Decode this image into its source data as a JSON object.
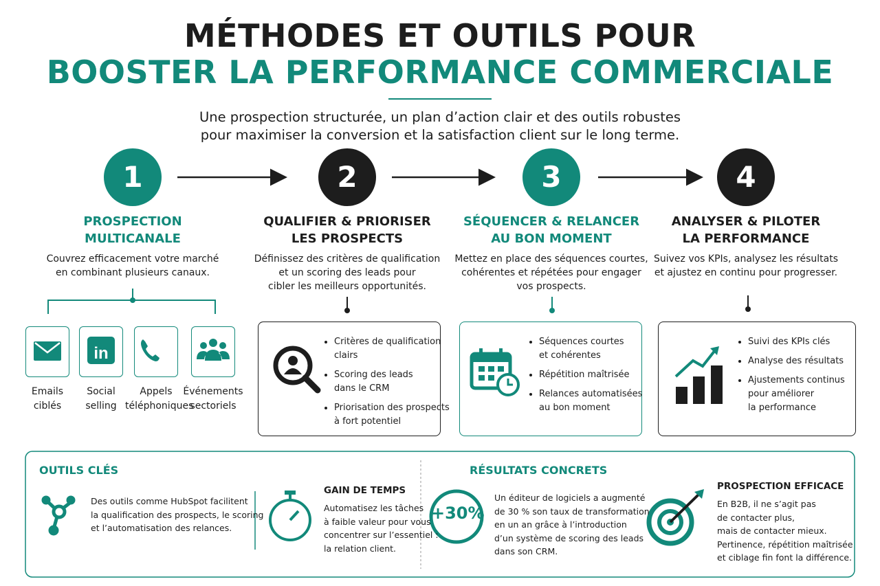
{
  "header": {
    "title_line1": "MÉTHODES ET OUTILS POUR",
    "title_line2": "BOOSTER LA PERFORMANCE COMMERCIALE",
    "subtitle": [
      "Une prospection structurée, un plan d’action clair et des outils robustes",
      "pour maximiser la conversion et la satisfaction client sur le long terme."
    ]
  },
  "steps": [
    {
      "number": 1,
      "title": [
        "PROSPECTION",
        "MULTICANALE"
      ],
      "description": [
        "Couvrez efficacement votre marché",
        "en combinant plusieurs canaux."
      ],
      "channels": [
        [
          "Emails",
          "ciblés"
        ],
        [
          "Social",
          "selling"
        ],
        [
          "Appels",
          "téléphoniques"
        ],
        [
          "Événements",
          "sectoriels"
        ]
      ]
    },
    {
      "number": 2,
      "title": [
        "QUALIFIER & PRIORISER",
        "LES PROSPECTS"
      ],
      "description": [
        "Définissez des critères de qualification",
        "et un scoring des leads pour",
        "cibler les meilleurs opportunités."
      ],
      "bullets": [
        [
          "Critères de qualification",
          "clairs"
        ],
        [
          "Scoring des leads",
          "dans le CRM"
        ],
        [
          "Priorisation des prospects",
          "à fort potentiel"
        ]
      ]
    },
    {
      "number": 3,
      "title": [
        "SÉQUENCER & RELANCER",
        "AU BON MOMENT"
      ],
      "description": [
        "Mettez en place des séquences courtes,",
        "cohérentes et répétées pour engager",
        "vos prospects."
      ],
      "bullets": [
        [
          "Séquences courtes",
          "et cohérentes"
        ],
        [
          "Répétition maîtrisée"
        ],
        [
          "Relances automatisées",
          "au bon moment"
        ]
      ]
    },
    {
      "number": 4,
      "title": [
        "ANALYSER & PILOTER",
        "LA PERFORMANCE"
      ],
      "description": [
        "Suivez vos KPIs, analysez les résultats",
        "et ajustez en continu pour progresser."
      ],
      "bullets": [
        [
          "Suivi des KPIs clés"
        ],
        [
          "Analyse des résultats"
        ],
        [
          "Ajustements continus",
          "pour améliorer",
          "la performance"
        ]
      ]
    }
  ],
  "tools": {
    "heading": "OUTILS CLÉS",
    "crm_text": [
      "Des outils comme HubSpot facilitent",
      "la qualification des prospects, le scoring",
      "et l’automatisation des relances."
    ],
    "time_title": "GAIN DE TEMPS",
    "time_text": [
      "Automatisez les tâches",
      "à faible valeur pour vous",
      "concentrer sur l’essentiel :",
      "la relation client."
    ]
  },
  "results": {
    "heading": "RÉSULTATS CONCRETS",
    "stat": "+30%",
    "stat_text": [
      "Un éditeur de logiciels a augmenté",
      "de 30 % son taux de transformation",
      "en un an grâce à l’introduction",
      "d’un système de scoring des leads",
      "dans son CRM."
    ],
    "efficace_title": "PROSPECTION EFFICACE",
    "efficace_text": [
      "En B2B, il ne s’agit pas",
      "de contacter plus,",
      "mais de contacter mieux.",
      "Pertinence, répétition maîtrisée",
      "et ciblage fin font la différence."
    ]
  }
}
